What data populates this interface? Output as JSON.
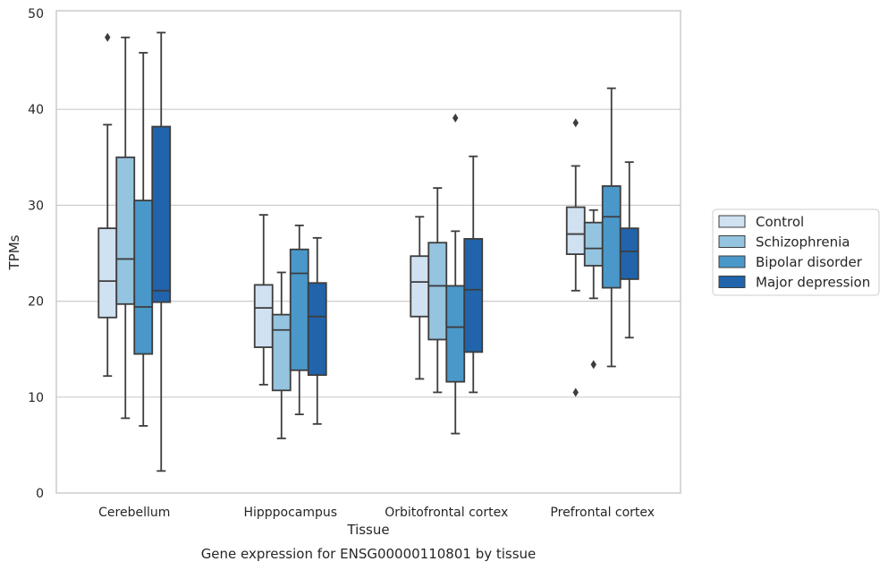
{
  "chart_data": {
    "type": "boxplot",
    "caption": "Gene expression for ENSG00000110801 by tissue",
    "xlabel": "Tissue",
    "ylabel": "TPMs",
    "ylim": [
      0,
      50
    ],
    "yticks": [
      0,
      10,
      20,
      30,
      40,
      50
    ],
    "grid": "horizontal",
    "legend_position": "right-outside",
    "categories": [
      "Cerebellum",
      "Hipppocampus",
      "Orbitofrontal cortex",
      "Prefrontal cortex"
    ],
    "series": [
      {
        "name": "Control",
        "color": "#d0e1f2",
        "boxes": [
          {
            "whislo": 12.2,
            "q1": 18.3,
            "med": 22.1,
            "q3": 27.6,
            "whishi": 38.4,
            "fliers": [
              47.5
            ]
          },
          {
            "whislo": 11.3,
            "q1": 15.2,
            "med": 19.3,
            "q3": 21.7,
            "whishi": 29.0,
            "fliers": []
          },
          {
            "whislo": 11.9,
            "q1": 18.4,
            "med": 22.0,
            "q3": 24.7,
            "whishi": 28.8,
            "fliers": []
          },
          {
            "whislo": 21.1,
            "q1": 24.9,
            "med": 27.0,
            "q3": 29.8,
            "whishi": 34.1,
            "fliers": [
              38.6,
              10.5
            ]
          }
        ]
      },
      {
        "name": "Schizophrenia",
        "color": "#94c4df",
        "boxes": [
          {
            "whislo": 7.8,
            "q1": 19.7,
            "med": 24.4,
            "q3": 35.0,
            "whishi": 47.5,
            "fliers": []
          },
          {
            "whislo": 5.7,
            "q1": 10.7,
            "med": 17.0,
            "q3": 18.6,
            "whishi": 23.0,
            "fliers": []
          },
          {
            "whislo": 10.5,
            "q1": 16.0,
            "med": 21.6,
            "q3": 26.1,
            "whishi": 31.8,
            "fliers": []
          },
          {
            "whislo": 20.3,
            "q1": 23.7,
            "med": 25.5,
            "q3": 28.2,
            "whishi": 29.5,
            "fliers": [
              13.4
            ]
          }
        ]
      },
      {
        "name": "Bipolar disorder",
        "color": "#4a98c9",
        "boxes": [
          {
            "whislo": 7.0,
            "q1": 14.5,
            "med": 19.4,
            "q3": 30.5,
            "whishi": 45.9,
            "fliers": []
          },
          {
            "whislo": 8.2,
            "q1": 12.8,
            "med": 22.9,
            "q3": 25.4,
            "whishi": 27.9,
            "fliers": []
          },
          {
            "whislo": 6.2,
            "q1": 11.6,
            "med": 17.3,
            "q3": 21.6,
            "whishi": 27.3,
            "fliers": [
              39.1
            ]
          },
          {
            "whislo": 13.2,
            "q1": 21.4,
            "med": 28.8,
            "q3": 32.0,
            "whishi": 42.2,
            "fliers": []
          }
        ]
      },
      {
        "name": "Major depression",
        "color": "#2164ab",
        "boxes": [
          {
            "whislo": 2.3,
            "q1": 19.9,
            "med": 21.1,
            "q3": 38.2,
            "whishi": 48.0,
            "fliers": []
          },
          {
            "whislo": 7.2,
            "q1": 12.3,
            "med": 18.4,
            "q3": 21.9,
            "whishi": 26.6,
            "fliers": []
          },
          {
            "whislo": 10.5,
            "q1": 14.7,
            "med": 21.2,
            "q3": 26.5,
            "whishi": 35.1,
            "fliers": []
          },
          {
            "whislo": 16.2,
            "q1": 22.3,
            "med": 25.2,
            "q3": 27.6,
            "whishi": 34.5,
            "fliers": []
          }
        ]
      }
    ]
  }
}
